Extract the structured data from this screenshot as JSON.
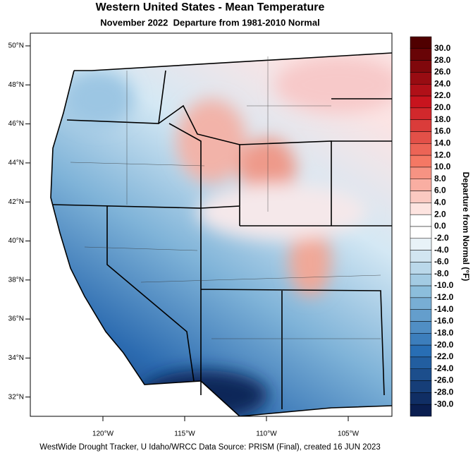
{
  "title": "Western United States - Mean Temperature",
  "subtitle": "November 2022  Departure from 1981-2010 Normal",
  "latitude_labels": [
    "50°N",
    "48°N",
    "46°N",
    "44°N",
    "42°N",
    "40°N",
    "38°N",
    "36°N",
    "34°N",
    "32°N"
  ],
  "longitude_labels": [
    "120°W",
    "115°W",
    "110°W",
    "105°W"
  ],
  "colorbar": {
    "title": "Departure from Normal (°F)",
    "labels": [
      "30.0",
      "28.0",
      "26.0",
      "24.0",
      "22.0",
      "20.0",
      "18.0",
      "16.0",
      "14.0",
      "12.0",
      "10.0",
      "8.0",
      "6.0",
      "4.0",
      "2.0",
      "0.0",
      "-2.0",
      "-4.0",
      "-6.0",
      "-8.0",
      "-10.0",
      "-12.0",
      "-14.0",
      "-16.0",
      "-18.0",
      "-20.0",
      "-22.0",
      "-24.0",
      "-26.0",
      "-28.0",
      "-30.0"
    ]
  },
  "footer": "WestWide Drought Tracker, U Idaho/WRCC Data Source: PRISM (Final), created 16 JUN 2023"
}
